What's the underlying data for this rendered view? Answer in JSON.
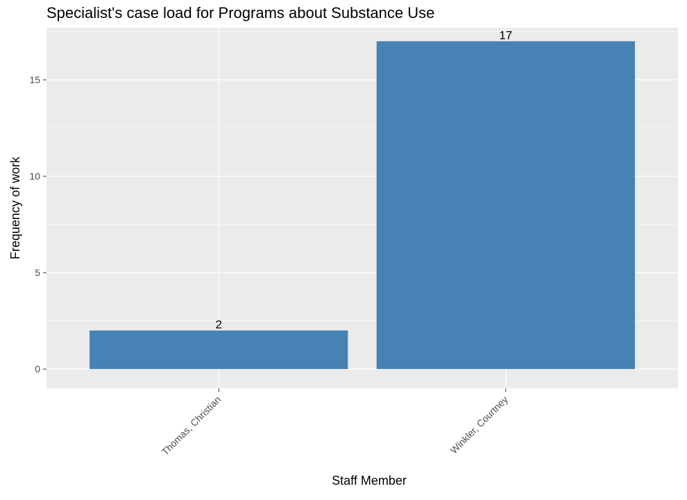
{
  "chart_data": {
    "type": "bar",
    "title": "Specialist's case load for Programs about Substance Use",
    "xlabel": "Staff Member",
    "ylabel": "Frequency of work",
    "categories": [
      "Thomas, Christian",
      "Winkler, Courtney"
    ],
    "values": [
      2,
      17
    ],
    "data_labels": [
      "2",
      "17"
    ],
    "ylim": [
      -1,
      17.7
    ],
    "yticks": [
      0,
      5,
      10,
      15
    ],
    "ytick_labels": [
      "0",
      "5",
      "10",
      "15"
    ],
    "grid": true,
    "legend": "none",
    "colors": {
      "bar": "#4682B4",
      "panel": "#EBEBEB",
      "grid": "#FFFFFF",
      "tick": "#333333"
    }
  }
}
